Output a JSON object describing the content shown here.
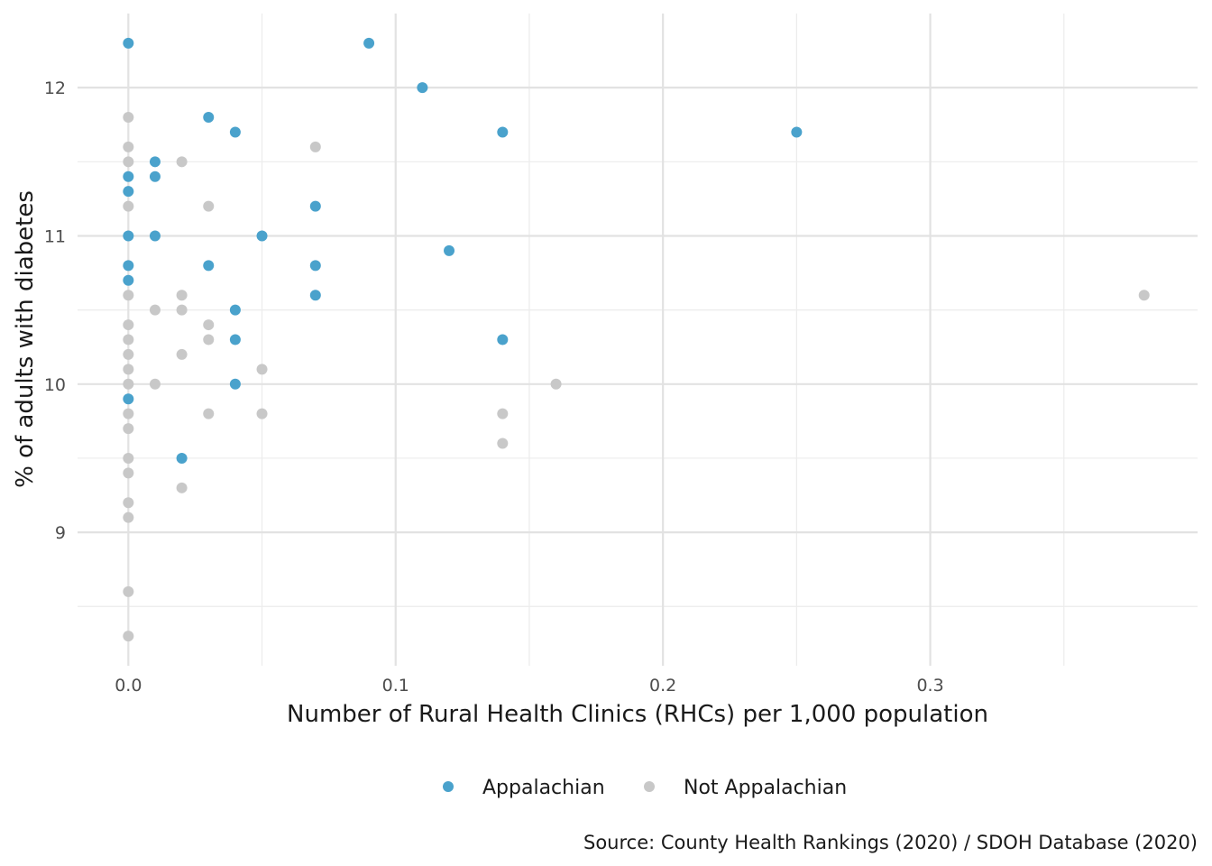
{
  "chart_data": {
    "type": "scatter",
    "title": "",
    "xlabel": "Number of Rural Health Clinics (RHCs) per 1,000 population",
    "ylabel": "% of adults with diabetes",
    "caption": "Source: County Health Rankings (2020) / SDOH Database (2020)",
    "xlim": [
      -0.019,
      0.4
    ],
    "ylim": [
      8.1,
      12.5
    ],
    "x_ticks": [
      0.0,
      0.1,
      0.2,
      0.3
    ],
    "x_tick_labels": [
      "0.0",
      "0.1",
      "0.2",
      "0.3"
    ],
    "y_ticks": [
      9,
      10,
      11,
      12
    ],
    "y_tick_labels": [
      "9",
      "10",
      "11",
      "12"
    ],
    "grid": true,
    "legend_position": "bottom",
    "series": [
      {
        "name": "Appalachian",
        "color": "#4aa2cc",
        "points": [
          [
            0,
            12.3
          ],
          [
            0,
            11.4
          ],
          [
            0,
            11.3
          ],
          [
            0,
            11.0
          ],
          [
            0,
            10.8
          ],
          [
            0,
            10.7
          ],
          [
            0,
            9.9
          ],
          [
            0.01,
            11.5
          ],
          [
            0.01,
            11.4
          ],
          [
            0.01,
            11.0
          ],
          [
            0.02,
            9.5
          ],
          [
            0.03,
            11.8
          ],
          [
            0.03,
            10.8
          ],
          [
            0.04,
            11.7
          ],
          [
            0.04,
            10.5
          ],
          [
            0.04,
            10.3
          ],
          [
            0.04,
            10.0
          ],
          [
            0.05,
            11.0
          ],
          [
            0.07,
            11.2
          ],
          [
            0.07,
            10.8
          ],
          [
            0.07,
            10.6
          ],
          [
            0.09,
            12.3
          ],
          [
            0.11,
            12.0
          ],
          [
            0.12,
            10.9
          ],
          [
            0.14,
            11.7
          ],
          [
            0.14,
            10.3
          ],
          [
            0.25,
            11.7
          ]
        ]
      },
      {
        "name": "Not Appalachian",
        "color": "#c8c8c8",
        "points": [
          [
            0,
            11.8
          ],
          [
            0,
            11.6
          ],
          [
            0,
            11.5
          ],
          [
            0,
            11.2
          ],
          [
            0,
            10.6
          ],
          [
            0,
            10.4
          ],
          [
            0,
            10.3
          ],
          [
            0,
            10.2
          ],
          [
            0,
            10.1
          ],
          [
            0,
            10.0
          ],
          [
            0,
            9.8
          ],
          [
            0,
            9.7
          ],
          [
            0,
            9.5
          ],
          [
            0,
            9.4
          ],
          [
            0,
            9.2
          ],
          [
            0,
            9.1
          ],
          [
            0,
            8.6
          ],
          [
            0,
            8.3
          ],
          [
            0.01,
            10.5
          ],
          [
            0.01,
            10.0
          ],
          [
            0.02,
            11.5
          ],
          [
            0.02,
            10.6
          ],
          [
            0.02,
            10.5
          ],
          [
            0.02,
            10.2
          ],
          [
            0.02,
            9.3
          ],
          [
            0.03,
            11.2
          ],
          [
            0.03,
            10.4
          ],
          [
            0.03,
            10.3
          ],
          [
            0.03,
            9.8
          ],
          [
            0.05,
            10.1
          ],
          [
            0.05,
            9.8
          ],
          [
            0.07,
            11.6
          ],
          [
            0.14,
            9.8
          ],
          [
            0.14,
            9.6
          ],
          [
            0.16,
            10.0
          ],
          [
            0.38,
            10.6
          ]
        ]
      }
    ]
  }
}
